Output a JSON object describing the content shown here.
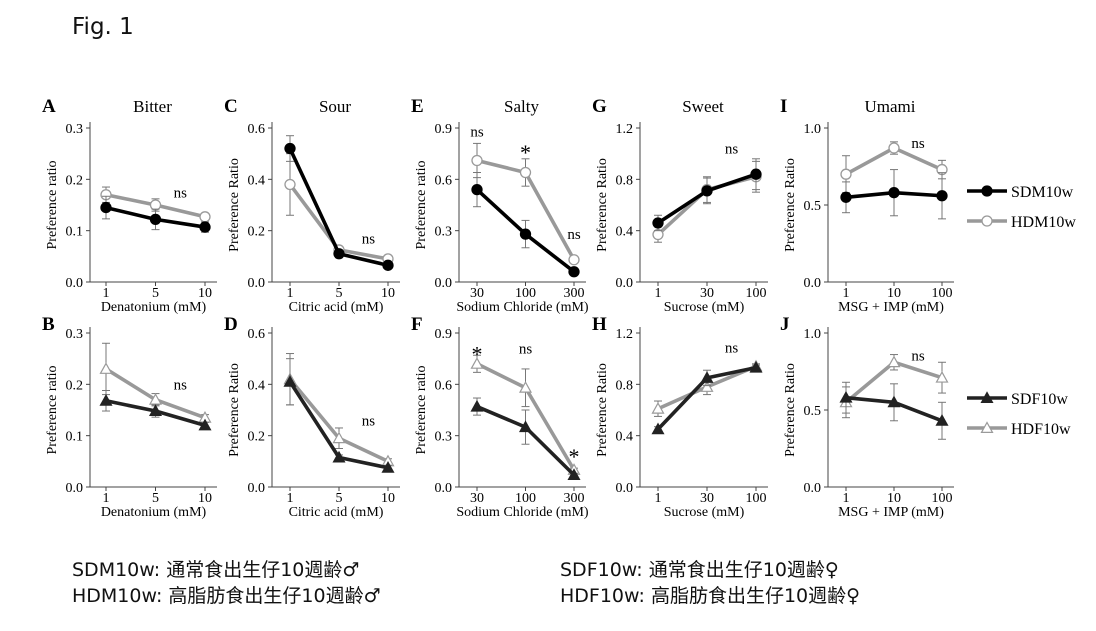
{
  "figure_label": "Fig. 1",
  "legend": {
    "male": [
      {
        "name": "SDM10w",
        "color": "#000000",
        "marker": "filled-circle"
      },
      {
        "name": "HDM10w",
        "color": "#999999",
        "marker": "open-circle"
      }
    ],
    "female": [
      {
        "name": "SDF10w",
        "color": "#222222",
        "marker": "filled-triangle"
      },
      {
        "name": "HDF10w",
        "color": "#999999",
        "marker": "open-triangle"
      }
    ]
  },
  "captions": [
    "SDM10w: 通常食出生仔10週齢♂",
    "HDM10w: 高脂肪食出生仔10週齢♂",
    "SDF10w: 通常食出生仔10週齢♀",
    "HDF10w: 高脂肪食出生仔10週齢♀"
  ],
  "chart_data": [
    {
      "panel": "A",
      "type": "line",
      "title": "Bitter",
      "xlabel": "Denatonium (mM)",
      "ylabel": "Preference ratio",
      "categories": [
        "1",
        "5",
        "10"
      ],
      "ylim": [
        0,
        0.3
      ],
      "yticks": [
        "0.0",
        "0.1",
        "0.2",
        "0.3"
      ],
      "series": [
        {
          "name": "SDM10w",
          "values": [
            0.145,
            0.122,
            0.107
          ],
          "err": [
            0.022,
            0.02,
            0.01
          ]
        },
        {
          "name": "HDM10w",
          "values": [
            0.17,
            0.15,
            0.127
          ],
          "err": [
            0.015,
            0.012,
            0.006
          ]
        }
      ],
      "annotations": [
        {
          "text": "ns",
          "cat": 1.5,
          "y": 0.165
        }
      ]
    },
    {
      "panel": "C",
      "type": "line",
      "title": "Sour",
      "xlabel": "Citric acid (mM)",
      "ylabel": "Preference Ratio",
      "categories": [
        "1",
        "5",
        "10"
      ],
      "ylim": [
        0,
        0.6
      ],
      "yticks": [
        "0.0",
        "0.2",
        "0.4",
        "0.6"
      ],
      "series": [
        {
          "name": "SDM10w",
          "values": [
            0.52,
            0.11,
            0.065
          ],
          "err": [
            0.05,
            0.015,
            0.012
          ]
        },
        {
          "name": "HDM10w",
          "values": [
            0.38,
            0.125,
            0.09
          ],
          "err": [
            0.12,
            0.01,
            0.01
          ]
        }
      ],
      "annotations": [
        {
          "text": "ns",
          "cat": 1.6,
          "y": 0.15
        }
      ]
    },
    {
      "panel": "E",
      "type": "line",
      "title": "Salty",
      "xlabel": "Sodium Chloride (mM)",
      "ylabel": "Preference ratio",
      "categories": [
        "30",
        "100",
        "300"
      ],
      "ylim": [
        0,
        0.9
      ],
      "yticks": [
        "0.0",
        "0.3",
        "0.6",
        "0.9"
      ],
      "series": [
        {
          "name": "SDM10w",
          "values": [
            0.54,
            0.28,
            0.06
          ],
          "err": [
            0.1,
            0.08,
            0.01
          ]
        },
        {
          "name": "HDM10w",
          "values": [
            0.71,
            0.64,
            0.13
          ],
          "err": [
            0.1,
            0.08,
            0.01
          ]
        }
      ],
      "annotations": [
        {
          "text": "ns",
          "cat": 0,
          "y": 0.85
        },
        {
          "text": "*",
          "cat": 1,
          "y": 0.76
        },
        {
          "text": "ns",
          "cat": 2,
          "y": 0.25
        }
      ]
    },
    {
      "panel": "G",
      "type": "line",
      "title": "Sweet",
      "xlabel": "Sucrose (mM)",
      "ylabel": "Preference Ratio",
      "categories": [
        "1",
        "30",
        "100"
      ],
      "ylim": [
        0,
        1.2
      ],
      "yticks": [
        "0.0",
        "0.4",
        "0.8",
        "1.2"
      ],
      "series": [
        {
          "name": "SDM10w",
          "values": [
            0.46,
            0.71,
            0.84
          ],
          "err": [
            0.06,
            0.1,
            0.12
          ]
        },
        {
          "name": "HDM10w",
          "values": [
            0.37,
            0.72,
            0.82
          ],
          "err": [
            0.06,
            0.1,
            0.12
          ]
        }
      ],
      "annotations": [
        {
          "text": "ns",
          "cat": 1.5,
          "y": 1.0
        }
      ]
    },
    {
      "panel": "I",
      "type": "line",
      "title": "Umami",
      "xlabel": "MSG + IMP (mM)",
      "ylabel": "Preference Ratio",
      "categories": [
        "1",
        "10",
        "100"
      ],
      "ylim": [
        0,
        1.0
      ],
      "yticks": [
        "0.0",
        "0.5",
        "1.0"
      ],
      "series": [
        {
          "name": "SDM10w",
          "values": [
            0.55,
            0.58,
            0.56
          ],
          "err": [
            0.1,
            0.15,
            0.15
          ]
        },
        {
          "name": "HDM10w",
          "values": [
            0.7,
            0.87,
            0.73
          ],
          "err": [
            0.12,
            0.04,
            0.06
          ]
        }
      ],
      "annotations": [
        {
          "text": "ns",
          "cat": 1.5,
          "y": 0.87
        }
      ]
    },
    {
      "panel": "B",
      "type": "line",
      "title": "",
      "xlabel": "Denatonium (mM)",
      "ylabel": "Preference ratio",
      "categories": [
        "1",
        "5",
        "10"
      ],
      "ylim": [
        0,
        0.3
      ],
      "yticks": [
        "0.0",
        "0.1",
        "0.2",
        "0.3"
      ],
      "series": [
        {
          "name": "SDF10w",
          "values": [
            0.168,
            0.148,
            0.12
          ],
          "err": [
            0.02,
            0.012,
            0.006
          ]
        },
        {
          "name": "HDF10w",
          "values": [
            0.23,
            0.17,
            0.135
          ],
          "err": [
            0.05,
            0.012,
            0.006
          ]
        }
      ],
      "annotations": [
        {
          "text": "ns",
          "cat": 1.5,
          "y": 0.19
        }
      ]
    },
    {
      "panel": "D",
      "type": "line",
      "title": "",
      "xlabel": "Citric acid (mM)",
      "ylabel": "Preference Ratio",
      "categories": [
        "1",
        "5",
        "10"
      ],
      "ylim": [
        0,
        0.6
      ],
      "yticks": [
        "0.0",
        "0.2",
        "0.4",
        "0.6"
      ],
      "series": [
        {
          "name": "SDF10w",
          "values": [
            0.41,
            0.115,
            0.075
          ],
          "err": [
            0.09,
            0.01,
            0.01
          ]
        },
        {
          "name": "HDF10w",
          "values": [
            0.42,
            0.19,
            0.1
          ],
          "err": [
            0.1,
            0.04,
            0.01
          ]
        }
      ],
      "annotations": [
        {
          "text": "ns",
          "cat": 1.6,
          "y": 0.24
        }
      ]
    },
    {
      "panel": "F",
      "type": "line",
      "title": "",
      "xlabel": "Sodium Chloride (mM)",
      "ylabel": "Preference ratio",
      "categories": [
        "30",
        "100",
        "300"
      ],
      "ylim": [
        0,
        0.9
      ],
      "yticks": [
        "0.0",
        "0.3",
        "0.6",
        "0.9"
      ],
      "series": [
        {
          "name": "SDF10w",
          "values": [
            0.47,
            0.35,
            0.07
          ],
          "err": [
            0.05,
            0.1,
            0.01
          ]
        },
        {
          "name": "HDF10w",
          "values": [
            0.72,
            0.58,
            0.1
          ],
          "err": [
            0.05,
            0.11,
            0.01
          ]
        }
      ],
      "annotations": [
        {
          "text": "*",
          "cat": 0,
          "y": 0.78
        },
        {
          "text": "ns",
          "cat": 1,
          "y": 0.78
        },
        {
          "text": "*",
          "cat": 2,
          "y": 0.18
        }
      ]
    },
    {
      "panel": "H",
      "type": "line",
      "title": "",
      "xlabel": "Sucrose (mM)",
      "ylabel": "Preference Ratio",
      "categories": [
        "1",
        "30",
        "100"
      ],
      "ylim": [
        0,
        1.2
      ],
      "yticks": [
        "0.0",
        "0.4",
        "0.8",
        "1.2"
      ],
      "series": [
        {
          "name": "SDF10w",
          "values": [
            0.45,
            0.85,
            0.93
          ],
          "err": [
            0.02,
            0.06,
            0.02
          ]
        },
        {
          "name": "HDF10w",
          "values": [
            0.61,
            0.78,
            0.94
          ],
          "err": [
            0.06,
            0.06,
            0.02
          ]
        }
      ],
      "annotations": [
        {
          "text": "ns",
          "cat": 1.5,
          "y": 1.05
        }
      ]
    },
    {
      "panel": "J",
      "type": "line",
      "title": "",
      "xlabel": "MSG + IMP (mM)",
      "ylabel": "Preference Ratio",
      "categories": [
        "1",
        "10",
        "100"
      ],
      "ylim": [
        0,
        1.0
      ],
      "yticks": [
        "0.0",
        "0.5",
        "1.0"
      ],
      "series": [
        {
          "name": "SDF10w",
          "values": [
            0.58,
            0.55,
            0.43
          ],
          "err": [
            0.1,
            0.12,
            0.12
          ]
        },
        {
          "name": "HDF10w",
          "values": [
            0.55,
            0.81,
            0.71
          ],
          "err": [
            0.1,
            0.05,
            0.1
          ]
        }
      ],
      "annotations": [
        {
          "text": "ns",
          "cat": 1.5,
          "y": 0.82
        }
      ]
    }
  ]
}
